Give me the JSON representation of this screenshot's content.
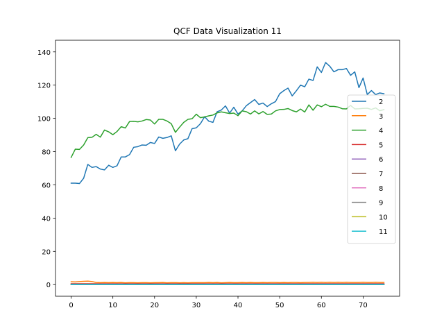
{
  "chart_data": {
    "type": "line",
    "title": "QCF Data Visualization 11",
    "xlabel": "",
    "ylabel": "",
    "xlim": [
      -3.75,
      78.75
    ],
    "ylim": [
      -7,
      147
    ],
    "xticks": [
      0,
      10,
      20,
      30,
      40,
      50,
      60,
      70
    ],
    "yticks": [
      0,
      20,
      40,
      60,
      80,
      100,
      120,
      140
    ],
    "grid": false,
    "legend_position": "center-right",
    "series": [
      {
        "name": "2",
        "color": "#1f77b4",
        "values": [
          61,
          61,
          60.8,
          64,
          72.3,
          70.5,
          71,
          69.5,
          69,
          71.8,
          70.5,
          71.5,
          76.8,
          76.8,
          78.2,
          82.6,
          83,
          84,
          83.8,
          85.5,
          84.9,
          88.8,
          88,
          88.5,
          89.5,
          80.5,
          84.5,
          87,
          87.8,
          93.8,
          94.3,
          96.8,
          101,
          98.3,
          97.6,
          104,
          105,
          107.5,
          103.2,
          106.7,
          102.6,
          104.5,
          107.6,
          109.5,
          111.3,
          108.4,
          109.2,
          107.1,
          108.8,
          110.1,
          114.8,
          116.7,
          118.2,
          113.5,
          116.6,
          120,
          119,
          123.6,
          122.8,
          131,
          127.6,
          133.6,
          131.4,
          128,
          129.3,
          129.3,
          130,
          125.9,
          128,
          118.5,
          124.3,
          114.3,
          116.7,
          114.3,
          115.3,
          114.8
        ]
      },
      {
        "name": "3",
        "color": "#ff7f0e",
        "values": [
          1.7,
          1.6,
          1.8,
          2.0,
          2.1,
          1.8,
          1.3,
          1.2,
          1.3,
          1.2,
          1.3,
          1.2,
          1.3,
          1.1,
          1.2,
          1.2,
          1.1,
          1.2,
          1.2,
          1.1,
          1.2,
          1.2,
          1.3,
          1.1,
          1.2,
          1.2,
          1.1,
          1.2,
          1.1,
          1.2,
          1.2,
          1.2,
          1.2,
          1.3,
          1.2,
          1.3,
          1.1,
          1.2,
          1.3,
          1.2,
          1.2,
          1.3,
          1.2,
          1.3,
          1.2,
          1.2,
          1.3,
          1.2,
          1.3,
          1.3,
          1.2,
          1.3,
          1.2,
          1.3,
          1.3,
          1.2,
          1.3,
          1.3,
          1.4,
          1.3,
          1.4,
          1.3,
          1.4,
          1.3,
          1.4,
          1.3,
          1.4,
          1.3,
          1.3,
          1.3,
          1.4,
          1.3,
          1.3,
          1.4,
          1.3,
          1.3
        ]
      },
      {
        "name": "4",
        "color": "#2ca02c",
        "values": [
          76.5,
          81.5,
          81.3,
          84,
          88.4,
          88.6,
          90.4,
          88.7,
          93,
          91.9,
          90.2,
          92.1,
          95,
          94.2,
          98.1,
          98.2,
          97.9,
          98.4,
          99.3,
          99,
          96.6,
          99.4,
          99.4,
          98.4,
          96.8,
          91.6,
          94.7,
          97.6,
          99.4,
          99.8,
          102.5,
          100.4,
          100.9,
          101.5,
          102,
          103.3,
          103.9,
          103.4,
          102.9,
          103.2,
          101.6,
          104.5,
          104,
          102.6,
          104.5,
          102.7,
          104.1,
          102.4,
          102.6,
          104.5,
          105.3,
          105.4,
          105.9,
          104.7,
          103.9,
          105.6,
          103.8,
          108.1,
          104.9,
          108.1,
          107,
          108.5,
          107.2,
          107.2,
          106.8,
          105.8,
          105.7,
          107.8,
          105.7,
          105.8,
          106,
          106.1,
          105.4,
          106.3,
          104.6,
          105.3
        ]
      },
      {
        "name": "5",
        "color": "#d62728",
        "values": [
          0.5,
          0.5,
          0.5,
          0.5,
          0.5,
          0.5,
          0.5,
          0.5,
          0.5,
          0.5,
          0.5,
          0.5,
          0.5,
          0.5,
          0.5,
          0.5,
          0.5,
          0.5,
          0.5,
          0.5,
          0.5,
          0.5,
          0.5,
          0.5,
          0.5,
          0.5,
          0.5,
          0.5,
          0.5,
          0.5,
          0.5,
          0.5,
          0.5,
          0.5,
          0.5,
          0.5,
          0.5,
          0.5,
          0.5,
          0.5,
          0.5,
          0.5,
          0.5,
          0.5,
          0.5,
          0.5,
          0.5,
          0.5,
          0.5,
          0.5,
          0.5,
          0.5,
          0.5,
          0.5,
          0.5,
          0.5,
          0.5,
          0.5,
          0.5,
          0.5,
          0.5,
          0.5,
          0.5,
          0.5,
          0.5,
          0.5,
          0.5,
          0.5,
          0.5,
          0.5,
          0.5,
          0.5,
          0.5,
          0.5,
          0.5,
          0.5
        ]
      },
      {
        "name": "6",
        "color": "#9467bd",
        "values": [
          0.2,
          0.2,
          0.2,
          0.2,
          0.2,
          0.2,
          0.2,
          0.2,
          0.2,
          0.2,
          0.2,
          0.2,
          0.2,
          0.2,
          0.2,
          0.2,
          0.2,
          0.2,
          0.2,
          0.2,
          0.2,
          0.2,
          0.2,
          0.2,
          0.2,
          0.2,
          0.2,
          0.2,
          0.2,
          0.2,
          0.2,
          0.2,
          0.2,
          0.2,
          0.2,
          0.2,
          0.2,
          0.2,
          0.2,
          0.2,
          0.2,
          0.2,
          0.2,
          0.2,
          0.2,
          0.2,
          0.2,
          0.2,
          0.2,
          0.2,
          0.2,
          0.2,
          0.2,
          0.2,
          0.2,
          0.2,
          0.2,
          0.2,
          0.2,
          0.2,
          0.2,
          0.2,
          0.2,
          0.2,
          0.2,
          0.2,
          0.2,
          0.2,
          0.2,
          0.2,
          0.2,
          0.2,
          0.2,
          0.2,
          0.2,
          0.2
        ]
      },
      {
        "name": "7",
        "color": "#8c564b",
        "values": [
          0.3,
          0.3,
          0.3,
          0.3,
          0.3,
          0.3,
          0.3,
          0.3,
          0.3,
          0.3,
          0.3,
          0.3,
          0.3,
          0.3,
          0.3,
          0.3,
          0.3,
          0.3,
          0.3,
          0.3,
          0.3,
          0.3,
          0.3,
          0.3,
          0.3,
          0.3,
          0.3,
          0.3,
          0.3,
          0.3,
          0.3,
          0.3,
          0.3,
          0.3,
          0.3,
          0.3,
          0.3,
          0.3,
          0.3,
          0.3,
          0.3,
          0.3,
          0.3,
          0.3,
          0.3,
          0.3,
          0.3,
          0.3,
          0.3,
          0.3,
          0.3,
          0.3,
          0.3,
          0.3,
          0.3,
          0.3,
          0.3,
          0.3,
          0.3,
          0.3,
          0.3,
          0.3,
          0.3,
          0.3,
          0.3,
          0.3,
          0.3,
          0.3,
          0.3,
          0.3,
          0.3,
          0.3,
          0.3,
          0.3,
          0.3,
          0.3
        ]
      },
      {
        "name": "8",
        "color": "#e377c2",
        "values": [
          0.1,
          0.1,
          0.1,
          0.1,
          0.1,
          0.1,
          0.1,
          0.1,
          0.1,
          0.1,
          0.1,
          0.1,
          0.1,
          0.1,
          0.1,
          0.1,
          0.1,
          0.1,
          0.1,
          0.1,
          0.1,
          0.1,
          0.1,
          0.1,
          0.1,
          0.1,
          0.1,
          0.1,
          0.1,
          0.1,
          0.1,
          0.1,
          0.1,
          0.1,
          0.1,
          0.1,
          0.1,
          0.1,
          0.1,
          0.1,
          0.1,
          0.1,
          0.1,
          0.1,
          0.1,
          0.1,
          0.1,
          0.1,
          0.1,
          0.1,
          0.1,
          0.1,
          0.1,
          0.1,
          0.1,
          0.1,
          0.1,
          0.1,
          0.1,
          0.1,
          0.1,
          0.1,
          0.1,
          0.1,
          0.1,
          0.1,
          0.1,
          0.1,
          0.1,
          0.1,
          0.1,
          0.1,
          0.1,
          0.1,
          0.1,
          0.1
        ]
      },
      {
        "name": "9",
        "color": "#7f7f7f",
        "values": [
          0.1,
          0.1,
          0.1,
          0.1,
          0.1,
          0.1,
          0.1,
          0.1,
          0.1,
          0.1,
          0.1,
          0.1,
          0.1,
          0.1,
          0.1,
          0.1,
          0.1,
          0.1,
          0.1,
          0.1,
          0.1,
          0.1,
          0.1,
          0.1,
          0.1,
          0.1,
          0.1,
          0.1,
          0.1,
          0.1,
          0.1,
          0.1,
          0.1,
          0.1,
          0.1,
          0.1,
          0.1,
          0.1,
          0.1,
          0.1,
          0.1,
          0.1,
          0.1,
          0.1,
          0.1,
          0.1,
          0.1,
          0.1,
          0.1,
          0.1,
          0.1,
          0.1,
          0.1,
          0.1,
          0.1,
          0.1,
          0.1,
          0.1,
          0.1,
          0.1,
          0.1,
          0.1,
          0.1,
          0.1,
          0.1,
          0.1,
          0.1,
          0.1,
          0.1,
          0.1,
          0.1,
          0.1,
          0.1,
          0.1,
          0.1,
          0.1
        ]
      },
      {
        "name": "10",
        "color": "#bcbd22",
        "values": [
          0,
          0,
          0,
          0,
          0,
          0,
          0,
          0,
          0,
          0,
          0,
          0,
          0,
          0,
          0,
          0,
          0,
          0,
          0,
          0,
          0,
          0,
          0,
          0,
          0,
          0,
          0,
          0,
          0,
          0,
          0,
          0,
          0,
          0,
          0,
          0,
          0,
          0,
          0,
          0,
          0,
          0,
          0,
          0,
          0,
          0,
          0,
          0,
          0,
          0,
          0,
          0,
          0,
          0,
          0,
          0,
          0,
          0,
          0,
          0,
          0,
          0,
          0,
          0,
          0,
          0,
          0,
          0,
          0,
          0,
          0,
          0,
          0,
          0,
          0,
          0
        ]
      },
      {
        "name": "11",
        "color": "#17becf",
        "values": [
          0,
          0,
          0,
          0,
          0,
          0,
          0,
          0,
          0,
          0,
          0,
          0,
          0,
          0,
          0,
          0,
          0,
          0,
          0,
          0,
          0,
          0,
          0,
          0,
          0,
          0,
          0,
          0,
          0,
          0,
          0,
          0,
          0,
          0,
          0,
          0,
          0,
          0,
          0,
          0,
          0,
          0,
          0,
          0,
          0,
          0,
          0,
          0,
          0,
          0,
          0,
          0,
          0,
          0,
          0,
          0,
          0,
          0,
          0,
          0,
          0,
          0,
          0,
          0,
          0,
          0,
          0,
          0,
          0,
          0,
          0,
          0,
          0,
          0,
          0,
          0
        ]
      }
    ]
  }
}
